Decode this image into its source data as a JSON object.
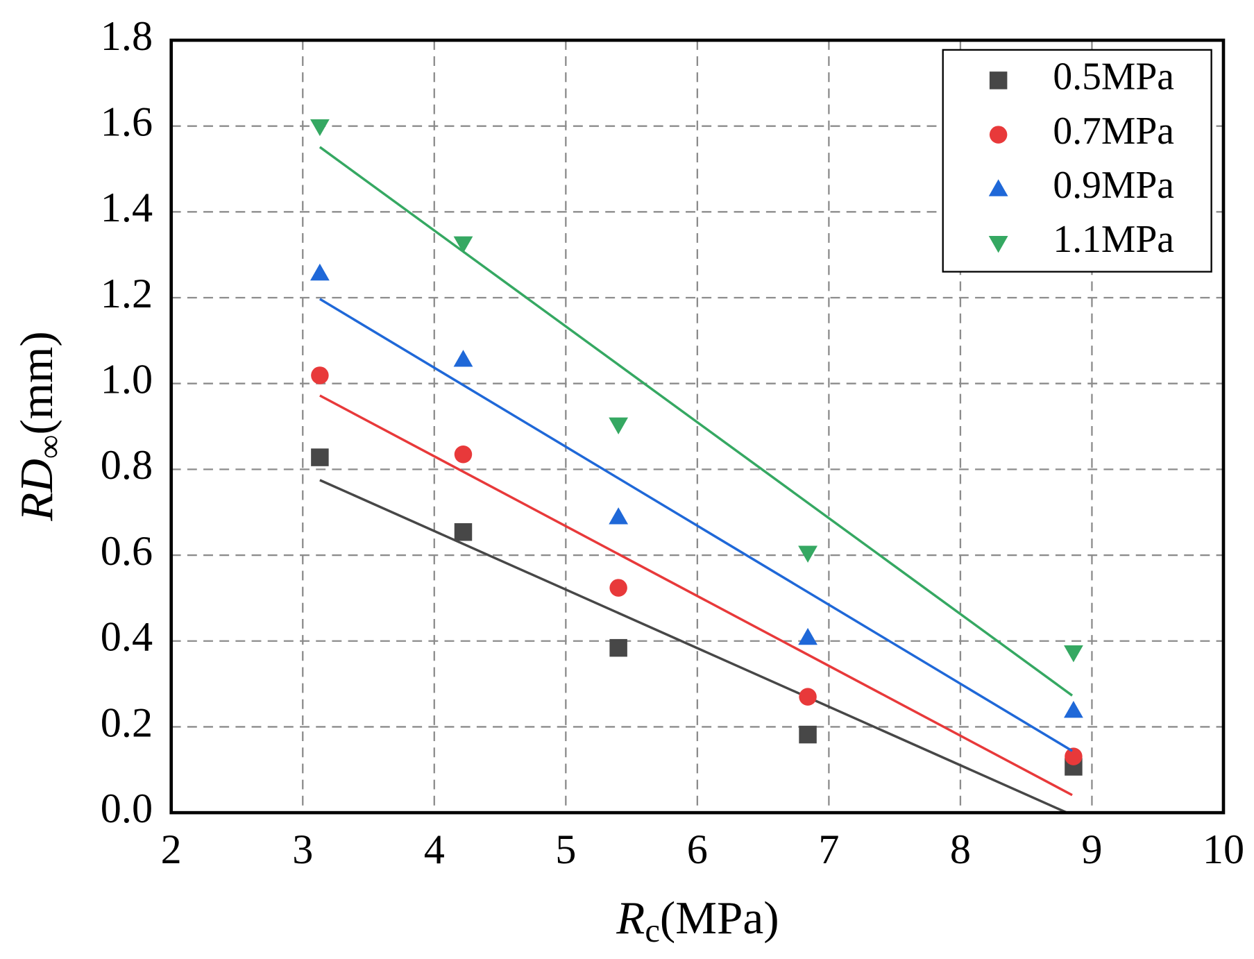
{
  "chart_data": {
    "type": "scatter",
    "x_label": {
      "symbol": "R",
      "sub": "c",
      "unit": "(MPa)"
    },
    "y_label": {
      "symbol": "RD",
      "sub": "∞",
      "unit": "(mm)"
    },
    "xlim": [
      2,
      10
    ],
    "xticks": [
      2,
      3,
      4,
      5,
      6,
      7,
      8,
      9,
      10
    ],
    "ylim": [
      0,
      1.8
    ],
    "yticks": [
      {
        "value": 0,
        "label": "0.0"
      },
      0.2,
      0.4,
      0.6,
      0.8,
      {
        "value": 1,
        "label": "1.0"
      },
      1.2,
      1.4,
      1.6,
      1.8
    ],
    "grid": true,
    "legend": "upper right",
    "series": [
      {
        "name": "0.5MPa",
        "color": "#474747",
        "marker": "square",
        "x": [
          3.13,
          4.22,
          5.4,
          6.84,
          8.86
        ],
        "values": [
          0.828,
          0.654,
          0.384,
          0.182,
          0.107
        ],
        "fit_x": [
          3.13,
          8.81
        ],
        "fit_values": [
          0.775,
          0.0
        ]
      },
      {
        "name": "0.7MPa",
        "color": "#e8393a",
        "marker": "circle",
        "x": [
          3.13,
          4.22,
          5.4,
          6.84,
          8.86
        ],
        "values": [
          1.019,
          0.835,
          0.524,
          0.27,
          0.131
        ],
        "fit_x": [
          3.13,
          8.85
        ],
        "fit_values": [
          0.972,
          0.041
        ]
      },
      {
        "name": "0.9MPa",
        "color": "#1f68d8",
        "marker": "triangle-up",
        "x": [
          3.13,
          4.22,
          5.4,
          6.84,
          8.86
        ],
        "values": [
          1.257,
          1.056,
          0.689,
          0.408,
          0.238
        ],
        "fit_x": [
          3.13,
          8.85
        ],
        "fit_values": [
          1.197,
          0.144
        ]
      },
      {
        "name": "1.1MPa",
        "color": "#35a862",
        "marker": "triangle-down",
        "x": [
          3.13,
          4.22,
          5.4,
          6.84,
          8.86
        ],
        "values": [
          1.599,
          1.326,
          0.904,
          0.605,
          0.373
        ],
        "fit_x": [
          3.13,
          8.85
        ],
        "fit_values": [
          1.551,
          0.273
        ]
      }
    ]
  }
}
